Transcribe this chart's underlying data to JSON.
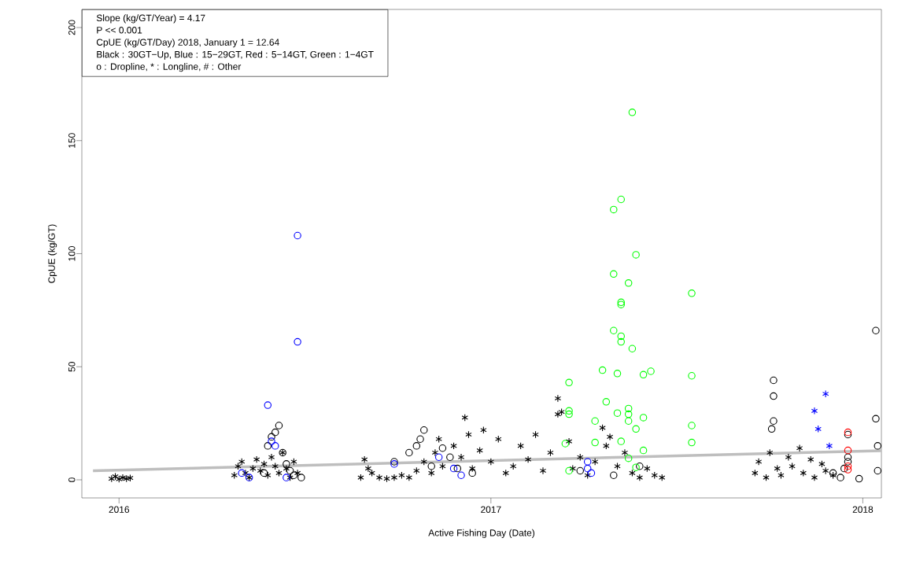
{
  "chart_data": {
    "type": "scatter",
    "xlabel": "Active Fishing Day (Date)",
    "ylabel": "CpUE (kg/GT)",
    "annotations": [
      "Slope (kg/GT/Year) = 4.17",
      "P << 0.001",
      "CpUE (kg/GT/Day) 2018, January 1 = 12.64",
      "Black : 30GT−Up, Blue : 15−29GT, Red : 5−14GT, Green : 1−4GT",
      "o : Dropline, * : Longline,  # : Other"
    ],
    "xlim": [
      2015.9,
      2018.05
    ],
    "ylim": [
      -8,
      208
    ],
    "xticks": [
      2016,
      2017,
      2018
    ],
    "yticks": [
      0,
      50,
      100,
      150,
      200
    ],
    "series": [
      {
        "color": "#000000",
        "marker": "cross",
        "x": [
          2015.98,
          2015.99,
          2016.0,
          2016.01,
          2016.02,
          2016.03,
          2016.31,
          2016.32,
          2016.33,
          2016.34,
          2016.35,
          2016.36,
          2016.37,
          2016.38,
          2016.39,
          2016.4,
          2016.41,
          2016.42,
          2016.43,
          2016.44,
          2016.45,
          2016.46,
          2016.47,
          2016.48,
          2016.65,
          2016.66,
          2016.67,
          2016.68,
          2016.7,
          2016.72,
          2016.74,
          2016.76,
          2016.78,
          2016.8,
          2016.82,
          2016.84,
          2016.85,
          2016.86,
          2016.87,
          2016.93,
          2016.9,
          2016.92,
          2016.94,
          2016.95,
          2016.97,
          2016.98,
          2017.0,
          2017.02,
          2017.04,
          2017.06,
          2017.08,
          2017.1,
          2017.12,
          2017.14,
          2017.16,
          2017.18,
          2017.18,
          2017.19,
          2017.21,
          2017.22,
          2017.24,
          2017.26,
          2017.28,
          2017.3,
          2017.31,
          2017.32,
          2017.34,
          2017.36,
          2017.38,
          2017.4,
          2017.42,
          2017.44,
          2017.46,
          2017.71,
          2017.72,
          2017.74,
          2017.75,
          2017.77,
          2017.78,
          2017.8,
          2017.81,
          2017.83,
          2017.84,
          2017.86,
          2017.87,
          2017.89,
          2017.9,
          2017.92
        ],
        "values": [
          0.5,
          1.5,
          0.3,
          1,
          0.5,
          0.8,
          2,
          6,
          8,
          3,
          1,
          5,
          9,
          4,
          7,
          2,
          10,
          6,
          3,
          12,
          5,
          1,
          8,
          3,
          1,
          9,
          5,
          3,
          1,
          0.5,
          1,
          2,
          1,
          4,
          8,
          3,
          12,
          18,
          6,
          27.5,
          15,
          10,
          20,
          5,
          13,
          22,
          8,
          18,
          3,
          6,
          15,
          9,
          20,
          4,
          12,
          36,
          29,
          30,
          17,
          5,
          10,
          2,
          8,
          23,
          15,
          19,
          6,
          12,
          3,
          1,
          5,
          2,
          1,
          3,
          8,
          1,
          12,
          5,
          2,
          10,
          6,
          14,
          3,
          9,
          1,
          7,
          4,
          2
        ]
      },
      {
        "color": "#000000",
        "marker": "circle",
        "x": [
          2016.39,
          2016.4,
          2016.41,
          2016.42,
          2016.43,
          2016.44,
          2016.45,
          2016.46,
          2016.47,
          2016.49,
          2016.74,
          2016.78,
          2016.8,
          2016.81,
          2016.82,
          2016.84,
          2016.87,
          2016.89,
          2016.91,
          2016.95,
          2017.24,
          2017.33,
          2017.4,
          2017.76,
          2017.76,
          2017.76,
          2017.755,
          2017.96,
          2017.96,
          2017.96,
          2017.95,
          2017.99,
          2017.92,
          2017.94,
          2018.035,
          2018.035,
          2018.04,
          2018.04
        ],
        "values": [
          3,
          15,
          19,
          21,
          24,
          12,
          7,
          4,
          2,
          1,
          8,
          12,
          15,
          18,
          22,
          6,
          14,
          10,
          5,
          3,
          4,
          2,
          6,
          44,
          37,
          26,
          22.5,
          20,
          10,
          8,
          5,
          0.5,
          3,
          1,
          66,
          27,
          15,
          4
        ]
      },
      {
        "color": "#0000ff",
        "marker": "circle",
        "x": [
          2016.48,
          2016.48,
          2016.4,
          2016.41,
          2016.42,
          2016.33,
          2016.35,
          2016.45,
          2016.74,
          2016.9,
          2016.92,
          2016.86,
          2017.26,
          2017.26,
          2017.27
        ],
        "values": [
          108,
          61,
          33,
          17,
          15,
          3,
          1,
          1,
          7,
          5,
          2,
          10,
          5,
          8,
          3
        ]
      },
      {
        "color": "#0000ff",
        "marker": "cross",
        "x": [
          2017.9,
          2017.87,
          2017.88,
          2017.91
        ],
        "values": [
          38,
          30.5,
          22.5,
          15
        ]
      },
      {
        "color": "#ff0000",
        "marker": "circle",
        "x": [
          2017.96,
          2017.96,
          2017.96,
          2017.96
        ],
        "values": [
          21,
          13,
          6,
          4.5
        ]
      },
      {
        "color": "#00ff00",
        "marker": "circle",
        "x": [
          2017.38,
          2017.35,
          2017.33,
          2017.39,
          2017.33,
          2017.37,
          2017.54,
          2017.35,
          2017.35,
          2017.33,
          2017.35,
          2017.35,
          2017.38,
          2017.3,
          2017.34,
          2017.41,
          2017.43,
          2017.54,
          2017.21,
          2017.31,
          2017.21,
          2017.21,
          2017.34,
          2017.37,
          2017.37,
          2017.37,
          2017.41,
          2017.28,
          2017.39,
          2017.54,
          2017.54,
          2017.2,
          2017.28,
          2017.35,
          2017.41,
          2017.37,
          2017.21,
          2017.39
        ],
        "values": [
          162.5,
          124,
          119.5,
          99.5,
          91,
          87,
          82.5,
          78.5,
          77.5,
          66,
          63.5,
          61,
          58,
          48.5,
          47,
          46.5,
          48,
          46,
          43,
          34.5,
          30.5,
          29,
          29.5,
          31.5,
          29,
          26,
          27.5,
          26,
          22.5,
          24,
          16.5,
          16,
          16.5,
          17,
          13,
          9.5,
          4,
          5.5
        ]
      },
      {
        "type": "line",
        "color": "#bebebe",
        "line_style": "solid",
        "x": [
          2015.93,
          2018.05
        ],
        "values": [
          4,
          12.9
        ]
      }
    ]
  }
}
